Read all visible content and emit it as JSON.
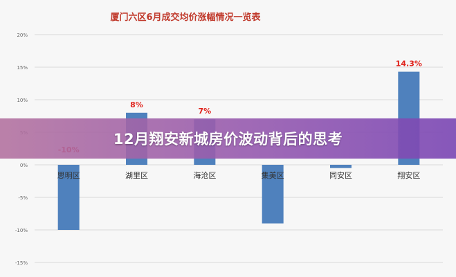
{
  "banner": {
    "title": "12月翔安新城房价波动背后的思考"
  },
  "chart_data": {
    "type": "bar",
    "title": "厦门六区6月成交均价涨幅情况一览表",
    "categories": [
      "思明区",
      "湖里区",
      "海沧区",
      "集美区",
      "同安区",
      "翔安区"
    ],
    "values": [
      -10,
      8,
      7,
      -9,
      -0.5,
      14.3
    ],
    "data_labels": [
      "-10%",
      "8%",
      "7%",
      "",
      "",
      "14.3%"
    ],
    "ylim": [
      -15,
      20
    ],
    "yticks": [
      20,
      15,
      10,
      5,
      0,
      -5,
      -10,
      -15
    ],
    "ytick_labels": [
      "20%",
      "15%",
      "10%",
      "5%",
      "0%",
      "-5%",
      "-10%",
      "-15%"
    ],
    "xlabel": "",
    "ylabel": "",
    "grid": true,
    "colors": {
      "bar": "#4f81bd",
      "label": "#e0221b",
      "title": "#c0392b",
      "grid": "#d9d9d9",
      "tick": "#666666"
    }
  }
}
